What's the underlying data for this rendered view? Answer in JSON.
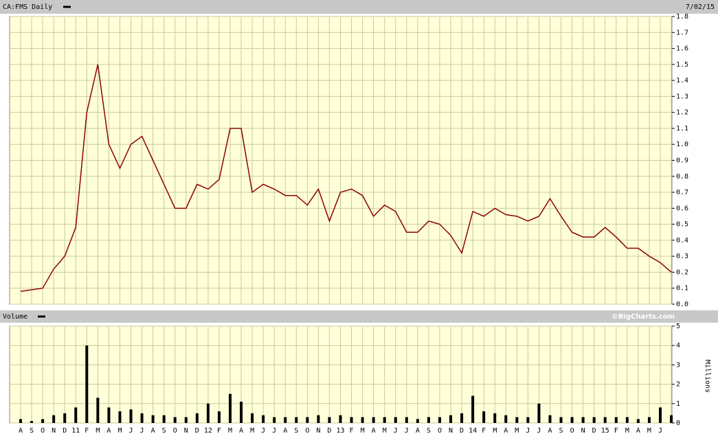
{
  "chart_data": [
    {
      "type": "line",
      "title": "CA:FMS Daily",
      "subtitle": "7/02/15",
      "color": "#8b0000",
      "values": [
        0.08,
        0.09,
        0.1,
        0.22,
        0.3,
        0.48,
        1.2,
        1.5,
        1.0,
        0.85,
        1.0,
        1.05,
        0.9,
        0.75,
        0.6,
        0.6,
        0.75,
        0.72,
        0.78,
        1.1,
        1.1,
        0.7,
        0.75,
        0.72,
        0.68,
        0.68,
        0.62,
        0.72,
        0.52,
        0.7,
        0.72,
        0.68,
        0.55,
        0.62,
        0.58,
        0.45,
        0.45,
        0.52,
        0.5,
        0.43,
        0.32,
        0.58,
        0.55,
        0.6,
        0.56,
        0.55,
        0.52,
        0.55,
        0.66,
        0.55,
        0.45,
        0.42,
        0.42,
        0.48,
        0.42,
        0.35,
        0.35,
        0.3,
        0.26,
        0.2
      ],
      "ylim": [
        0,
        1.8
      ],
      "yticks": [
        {
          "value": 0,
          "label": "0.0"
        },
        0.1,
        0.2,
        0.3,
        0.4,
        0.5,
        0.6,
        0.7,
        0.8,
        0.9,
        {
          "value": 1,
          "label": "1.0"
        },
        1.1,
        1.2,
        1.3,
        1.4,
        1.5,
        1.6,
        1.7,
        1.8
      ],
      "grid": true
    },
    {
      "type": "bar",
      "title": "Volume",
      "annotation": "©BigCharts.com",
      "y_label": "Millions",
      "color": "#000000",
      "categories": [
        "A",
        "S",
        "O",
        "N",
        "D",
        "11",
        "F",
        "M",
        "A",
        "M",
        "J",
        "J",
        "A",
        "S",
        "O",
        "N",
        "D",
        "12",
        "F",
        "M",
        "A",
        "M",
        "J",
        "J",
        "A",
        "S",
        "O",
        "N",
        "D",
        "13",
        "F",
        "M",
        "A",
        "M",
        "J",
        "J",
        "A",
        "S",
        "O",
        "N",
        "D",
        "14",
        "F",
        "M",
        "A",
        "M",
        "J",
        "J",
        "A",
        "S",
        "O",
        "N",
        "D",
        "15",
        "F",
        "M",
        "A",
        "M",
        "J",
        null
      ],
      "values": [
        0.2,
        0.1,
        0.2,
        0.4,
        0.5,
        0.8,
        4.0,
        1.3,
        0.8,
        0.6,
        0.7,
        0.5,
        0.4,
        0.4,
        0.3,
        0.3,
        0.5,
        1.0,
        0.6,
        1.5,
        1.1,
        0.5,
        0.4,
        0.3,
        0.3,
        0.3,
        0.3,
        0.4,
        0.3,
        0.4,
        0.3,
        0.3,
        0.3,
        0.3,
        0.3,
        0.3,
        0.2,
        0.3,
        0.3,
        0.4,
        0.5,
        1.4,
        0.6,
        0.5,
        0.4,
        0.3,
        0.3,
        1.0,
        0.4,
        0.3,
        0.3,
        0.3,
        0.3,
        0.3,
        0.3,
        0.3,
        0.2,
        0.3,
        0.8,
        0.4
      ],
      "ylim": [
        0,
        5
      ],
      "yticks": [
        0,
        1,
        2,
        3,
        4,
        5
      ],
      "grid": true
    }
  ]
}
